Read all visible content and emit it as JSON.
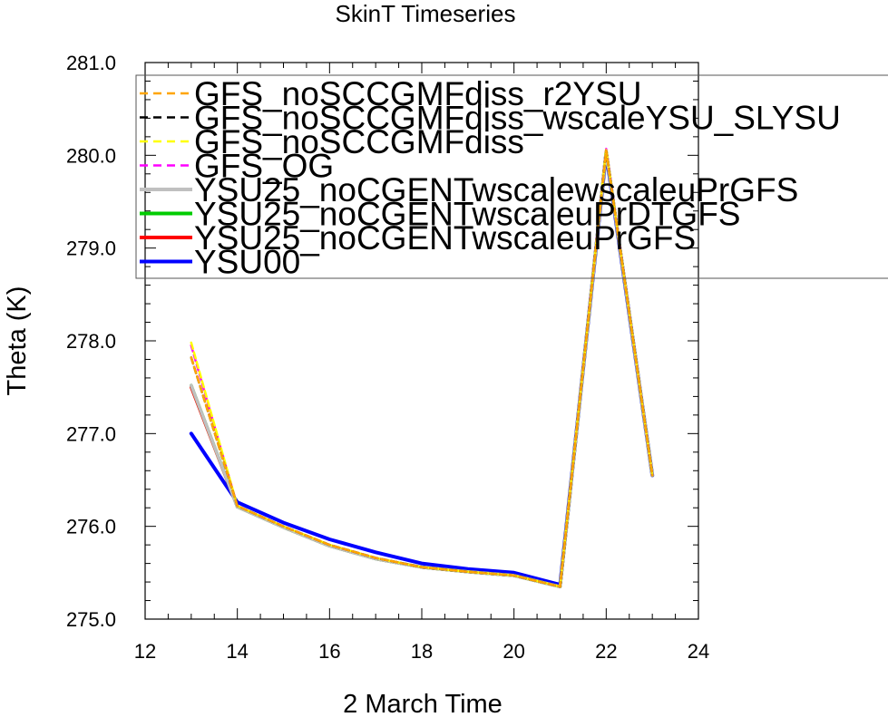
{
  "chart_data": {
    "type": "line",
    "title": "SkinT Timeseries",
    "xlabel": "2 March Time",
    "ylabel": "Theta (K)",
    "xlim": [
      12,
      24
    ],
    "ylim": [
      275.0,
      281.0
    ],
    "x_ticks": [
      12,
      14,
      16,
      18,
      20,
      22,
      24
    ],
    "y_ticks": [
      "275.0",
      "276.0",
      "277.0",
      "278.0",
      "279.0",
      "280.0",
      "281.0"
    ],
    "grid": false,
    "legend_position": "top",
    "series": [
      {
        "name": "YSU00",
        "color": "#0000ff",
        "dash": "solid",
        "x": [
          13,
          14,
          15,
          16,
          17,
          18,
          19,
          20,
          21,
          22,
          23
        ],
        "y": [
          277.0,
          276.26,
          276.04,
          275.86,
          275.72,
          275.6,
          275.54,
          275.5,
          275.37,
          280.02,
          276.55
        ]
      },
      {
        "name": "YSU25_noCGENTwscaleuPrGFS",
        "color": "#ff0000",
        "dash": "solid",
        "x": [
          13,
          14,
          15,
          16,
          17,
          18,
          19,
          20,
          21,
          22,
          23
        ],
        "y": [
          277.5,
          276.21,
          275.99,
          275.79,
          275.65,
          275.56,
          275.51,
          275.47,
          275.35,
          280.04,
          276.55
        ]
      },
      {
        "name": "YSU25_noCGENTwscaleuPrDTGFS",
        "color": "#00cc00",
        "dash": "solid",
        "x": [
          13,
          14,
          15,
          16,
          17,
          18,
          19,
          20,
          21,
          22,
          23
        ],
        "y": [
          277.52,
          276.21,
          275.99,
          275.79,
          275.65,
          275.56,
          275.51,
          275.47,
          275.35,
          280.04,
          276.55
        ]
      },
      {
        "name": "YSU25_noCGENTwscalewscaleuPrGFS",
        "color": "#c0c0c0",
        "dash": "solid",
        "x": [
          13,
          14,
          15,
          16,
          17,
          18,
          19,
          20,
          21,
          22,
          23
        ],
        "y": [
          277.52,
          276.21,
          275.99,
          275.79,
          275.65,
          275.56,
          275.51,
          275.47,
          275.35,
          280.04,
          276.55
        ]
      },
      {
        "name": "GFS_OG",
        "color": "#ff00ff",
        "dash": "dashed",
        "x": [
          13,
          14,
          15,
          16,
          17,
          18,
          19,
          20,
          21,
          22,
          23
        ],
        "y": [
          277.95,
          276.22,
          276.0,
          275.8,
          275.66,
          275.56,
          275.51,
          275.47,
          275.35,
          280.07,
          276.55
        ]
      },
      {
        "name": "GFS_noSCCGMFdiss",
        "color": "#ffff00",
        "dash": "dashed",
        "x": [
          13,
          14,
          15,
          16,
          17,
          18,
          19,
          20,
          21,
          22,
          23
        ],
        "y": [
          277.98,
          276.22,
          276.0,
          275.8,
          275.66,
          275.56,
          275.51,
          275.47,
          275.35,
          280.07,
          276.55
        ]
      },
      {
        "name": "GFS_noSCCGMFdiss_wscaleYSU_SLYSU",
        "color": "#000000",
        "dash": "dashed",
        "x": [
          13,
          14,
          15,
          16,
          17,
          18,
          19,
          20,
          21,
          22,
          23
        ],
        "y": [
          277.82,
          276.22,
          276.0,
          275.8,
          275.66,
          275.56,
          275.51,
          275.47,
          275.35,
          280.05,
          276.55
        ]
      },
      {
        "name": "GFS_noSCCGMFdiss_r2YSU",
        "color": "#ffa500",
        "dash": "dashed",
        "x": [
          13,
          14,
          15,
          16,
          17,
          18,
          19,
          20,
          21,
          22,
          23
        ],
        "y": [
          277.82,
          276.22,
          276.0,
          275.8,
          275.66,
          275.56,
          275.51,
          275.47,
          275.35,
          280.05,
          276.55
        ]
      }
    ],
    "legend": [
      {
        "name": "GFS_noSCCGMFdiss_r2YSU",
        "color": "#ffa500",
        "dash": "dashed"
      },
      {
        "name": "GFS_noSCCGMFdiss_wscaleYSU_SLYSU",
        "color": "#000000",
        "dash": "dashed"
      },
      {
        "name": "GFS_noSCCGMFdiss",
        "color": "#ffff00",
        "dash": "dashed"
      },
      {
        "name": "GFS_OG",
        "color": "#ff00ff",
        "dash": "dashed"
      },
      {
        "name": "YSU25_noCGENTwscalewscaleuPrGFS",
        "color": "#c0c0c0",
        "dash": "solid"
      },
      {
        "name": "YSU25_noCGENTwscaleuPrDTGFS",
        "color": "#00cc00",
        "dash": "solid"
      },
      {
        "name": "YSU25_noCGENTwscaleuPrGFS",
        "color": "#ff0000",
        "dash": "solid"
      },
      {
        "name": "YSU00",
        "color": "#0000ff",
        "dash": "solid"
      }
    ]
  }
}
